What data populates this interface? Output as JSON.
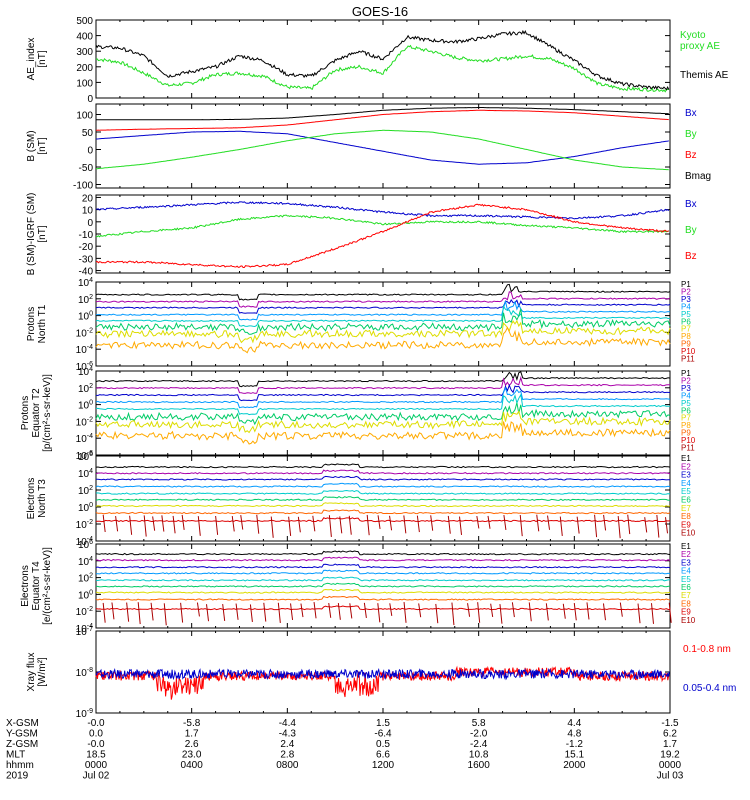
{
  "title": "GOES-16",
  "colors": {
    "black": "#000000",
    "red": "#ff0000",
    "green": "#22dd22",
    "blue": "#0000cc",
    "cyan": "#00cccc",
    "yellow": "#dddd00",
    "darkred": "#aa0000"
  },
  "x_axis": {
    "rows": [
      {
        "label": "X-GSM",
        "values": [
          "-0.0",
          "-5.8",
          "-4.4",
          "1.5",
          "5.8",
          "4.4",
          "-1.5"
        ]
      },
      {
        "label": "Y-GSM",
        "values": [
          "0.0",
          "1.7",
          "-4.3",
          "-6.4",
          "-2.0",
          "4.8",
          "6.2"
        ]
      },
      {
        "label": "Z-GSM",
        "values": [
          "-0.0",
          "2.6",
          "2.4",
          "0.5",
          "-2.4",
          "-1.2",
          "1.7"
        ]
      },
      {
        "label": "MLT",
        "values": [
          "18.5",
          "23.0",
          "2.8",
          "6.6",
          "10.8",
          "15.1",
          "19.2"
        ]
      },
      {
        "label": "hhmm",
        "values": [
          "0000",
          "0400",
          "0800",
          "1200",
          "1600",
          "2000",
          "0000"
        ]
      },
      {
        "label": "2019",
        "values": [
          "Jul 02",
          "",
          "",
          "",
          "",
          "",
          "Jul 03"
        ]
      }
    ]
  },
  "chart_data": [
    {
      "type": "line",
      "ylabel": "AE_index\n[nT]",
      "ylim": [
        0,
        500
      ],
      "yticks": [
        "0",
        "100",
        "200",
        "300",
        "400",
        "500"
      ],
      "x_range_hours": [
        0,
        24
      ],
      "series": [
        {
          "name": "Kyoto\nproxy AE",
          "color": "#22dd22",
          "x": [
            0,
            1,
            2,
            3,
            4,
            5,
            6,
            7,
            8,
            9,
            10,
            11,
            12,
            13,
            14,
            15,
            16,
            17,
            18,
            19,
            20,
            21,
            22,
            23,
            24
          ],
          "y": [
            250,
            230,
            160,
            80,
            95,
            150,
            160,
            140,
            70,
            60,
            180,
            200,
            160,
            330,
            300,
            260,
            240,
            250,
            270,
            250,
            190,
            90,
            60,
            55,
            50
          ]
        },
        {
          "name": "Themis AE",
          "color": "#000000",
          "x": [
            0,
            1,
            2,
            3,
            4,
            5,
            6,
            7,
            8,
            9,
            10,
            11,
            12,
            13,
            14,
            15,
            16,
            17,
            18,
            19,
            20,
            21,
            22,
            23,
            24
          ],
          "y": [
            330,
            320,
            270,
            140,
            170,
            200,
            270,
            240,
            150,
            140,
            240,
            300,
            250,
            390,
            370,
            360,
            380,
            410,
            420,
            330,
            240,
            140,
            90,
            70,
            60
          ]
        }
      ]
    },
    {
      "type": "line",
      "ylabel": "B (SM)\n[nT]",
      "ylim": [
        -110,
        130
      ],
      "yticks": [
        "-100",
        "-50",
        "0",
        "50",
        "100"
      ],
      "series": [
        {
          "name": "Bx",
          "color": "#0000cc",
          "x": [
            0,
            2,
            4,
            6,
            8,
            10,
            12,
            14,
            16,
            18,
            20,
            22,
            24
          ],
          "y": [
            30,
            40,
            50,
            52,
            45,
            20,
            -5,
            -30,
            -42,
            -38,
            -20,
            5,
            25
          ]
        },
        {
          "name": "By",
          "color": "#22dd22",
          "x": [
            0,
            2,
            4,
            6,
            8,
            10,
            12,
            14,
            16,
            18,
            20,
            22,
            24
          ],
          "y": [
            -55,
            -42,
            -22,
            0,
            25,
            45,
            55,
            50,
            30,
            0,
            -30,
            -50,
            -58
          ]
        },
        {
          "name": "Bz",
          "color": "#ff0000",
          "x": [
            0,
            2,
            4,
            6,
            8,
            10,
            12,
            14,
            16,
            18,
            20,
            22,
            24
          ],
          "y": [
            55,
            58,
            60,
            62,
            70,
            85,
            100,
            108,
            112,
            110,
            105,
            95,
            85
          ]
        },
        {
          "name": "Bmag",
          "color": "#000000",
          "x": [
            0,
            2,
            4,
            6,
            8,
            10,
            12,
            14,
            16,
            18,
            20,
            22,
            24
          ],
          "y": [
            85,
            85,
            85,
            86,
            90,
            100,
            112,
            118,
            120,
            118,
            114,
            108,
            102
          ]
        }
      ]
    },
    {
      "type": "line",
      "ylabel": "B (SM)-IGRF (SM)\n[nT]",
      "ylim": [
        -42,
        22
      ],
      "yticks": [
        "-40",
        "-30",
        "-20",
        "-10",
        "0",
        "10",
        "20"
      ],
      "series": [
        {
          "name": "Bx",
          "color": "#0000cc",
          "x": [
            0,
            2,
            4,
            6,
            8,
            10,
            12,
            14,
            16,
            18,
            20,
            22,
            24
          ],
          "y": [
            10,
            12,
            14,
            16,
            15,
            12,
            8,
            5,
            5,
            4,
            3,
            5,
            10
          ]
        },
        {
          "name": "By",
          "color": "#22dd22",
          "x": [
            0,
            2,
            4,
            6,
            8,
            10,
            12,
            14,
            16,
            18,
            20,
            22,
            24
          ],
          "y": [
            -12,
            -8,
            -5,
            2,
            5,
            3,
            -2,
            0,
            0,
            -3,
            -5,
            -8,
            -8
          ]
        },
        {
          "name": "Bz",
          "color": "#ff0000",
          "x": [
            0,
            2,
            4,
            6,
            8,
            10,
            12,
            14,
            16,
            18,
            20,
            22,
            24
          ],
          "y": [
            -33,
            -33,
            -35,
            -37,
            -35,
            -22,
            -8,
            8,
            14,
            10,
            0,
            -5,
            -8
          ]
        }
      ]
    },
    {
      "type": "line",
      "ylabel": "Protons\nNorth T1",
      "log_range": [
        -6,
        4
      ],
      "yticks": [
        "10^4",
        "10^2",
        "10^0",
        "10^-2",
        "10^-4",
        "10^-6"
      ],
      "legend": [
        "P1",
        "P2",
        "P3",
        "P4",
        "P5",
        "P6",
        "P7",
        "P8",
        "P9",
        "P10",
        "P11"
      ],
      "legend_colors": [
        "#000000",
        "#aa00aa",
        "#0000cc",
        "#0099ff",
        "#00cccc",
        "#00cc66",
        "#dddd00",
        "#ffaa00",
        "#ff6600",
        "#dd0000",
        "#aa0000"
      ],
      "levels_log10": [
        2.5,
        1.7,
        1.0,
        0.2,
        -0.5,
        -1.2,
        -2.0,
        -3.3
      ]
    },
    {
      "type": "line",
      "ylabel": "Protons\nEquator T2\n[p/(cm²-s-sr-keV)]",
      "log_range": [
        -6,
        4
      ],
      "yticks": [
        "10^4",
        "10^2",
        "10^0",
        "10^-2",
        "10^-4",
        "10^-6"
      ],
      "legend": [
        "P1",
        "P2",
        "P3",
        "P4",
        "P5",
        "P6",
        "P7",
        "P8",
        "P9",
        "P10",
        "P11"
      ],
      "legend_colors": [
        "#000000",
        "#aa00aa",
        "#0000cc",
        "#0099ff",
        "#00cccc",
        "#00cc66",
        "#dddd00",
        "#ffaa00",
        "#ff6600",
        "#dd0000",
        "#aa0000"
      ],
      "levels_log10": [
        2.8,
        2.0,
        1.2,
        0.4,
        -0.4,
        -1.3,
        -2.2,
        -3.5
      ]
    },
    {
      "type": "line",
      "ylabel": "Electrons\nNorth T3",
      "log_range": [
        -4,
        6
      ],
      "yticks": [
        "10^6",
        "10^4",
        "10^2",
        "10^0",
        "10^-2",
        "10^-4"
      ],
      "legend": [
        "E1",
        "E2",
        "E3",
        "E4",
        "E5",
        "E6",
        "E7",
        "E8",
        "E9",
        "E10"
      ],
      "legend_colors": [
        "#000000",
        "#aa00aa",
        "#0000cc",
        "#0099ff",
        "#00cccc",
        "#00cc66",
        "#dddd00",
        "#ff6600",
        "#dd0000",
        "#aa0000"
      ],
      "levels_log10": [
        4.7,
        4.0,
        3.3,
        2.5,
        1.7,
        1.0,
        0.3,
        -0.5,
        -1.4
      ]
    },
    {
      "type": "line",
      "ylabel": "Electrons\nEquator T4\n[e/(cm²-s-sr-keV)]",
      "log_range": [
        -4,
        6
      ],
      "yticks": [
        "10^6",
        "10^4",
        "10^2",
        "10^0",
        "10^-2",
        "10^-4"
      ],
      "legend": [
        "E1",
        "E2",
        "E3",
        "E4",
        "E5",
        "E6",
        "E7",
        "E8",
        "E9",
        "E10"
      ],
      "legend_colors": [
        "#000000",
        "#aa00aa",
        "#0000cc",
        "#0099ff",
        "#00cccc",
        "#00cc66",
        "#dddd00",
        "#ff6600",
        "#dd0000",
        "#aa0000"
      ],
      "levels_log10": [
        4.8,
        4.1,
        3.3,
        2.6,
        1.8,
        1.1,
        0.4,
        -0.4,
        -1.5
      ]
    },
    {
      "type": "line",
      "ylabel": "Xray flux\n[W/m²]",
      "log_range": [
        -9,
        -7
      ],
      "yticks": [
        "10^-7",
        "10^-8",
        "10^-9"
      ],
      "series": [
        {
          "name": "0.1-0.8 nm",
          "color": "#ff0000",
          "level_log10": -8.1
        },
        {
          "name": "0.05-0.4 nm",
          "color": "#0000cc",
          "level_log10": -8.05
        }
      ]
    }
  ]
}
